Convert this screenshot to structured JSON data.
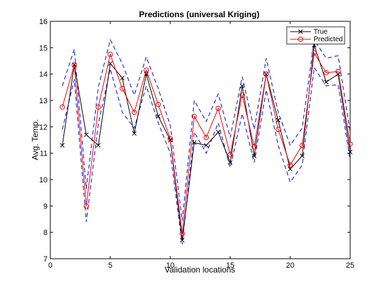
{
  "chart_data": {
    "type": "line",
    "title": "Predictions (universal Kriging)",
    "xlabel": "Validation locations",
    "ylabel": "Avg. Temp.",
    "xlim": [
      0,
      25
    ],
    "ylim": [
      7,
      16
    ],
    "xticks": [
      0,
      5,
      10,
      15,
      20,
      25
    ],
    "yticks": [
      7,
      8,
      9,
      10,
      11,
      12,
      13,
      14,
      15,
      16
    ],
    "grid": false,
    "legend_position": "top-right",
    "x": [
      1,
      2,
      3,
      4,
      5,
      6,
      7,
      8,
      9,
      10,
      11,
      12,
      13,
      14,
      15,
      16,
      17,
      18,
      19,
      20,
      21,
      22,
      23,
      24,
      25
    ],
    "series": [
      {
        "name": "True",
        "color": "#000000",
        "marker": "x",
        "values": [
          11.3,
          14.35,
          11.7,
          11.3,
          14.4,
          13.85,
          11.75,
          14.0,
          12.4,
          11.5,
          7.7,
          11.4,
          11.3,
          11.8,
          10.65,
          13.55,
          10.9,
          14.0,
          12.25,
          10.4,
          10.9,
          15.1,
          13.7,
          14.0,
          11.05
        ]
      },
      {
        "name": "Predicted",
        "color": "#ff0000",
        "marker": "o",
        "values": [
          12.75,
          14.35,
          9.0,
          12.75,
          14.75,
          13.45,
          12.55,
          14.15,
          12.85,
          11.55,
          7.95,
          12.4,
          11.6,
          12.7,
          10.95,
          13.2,
          11.25,
          14.0,
          11.9,
          10.55,
          11.3,
          14.8,
          14.05,
          14.1,
          11.35
        ]
      }
    ],
    "bands": [
      {
        "color": "#0000ff",
        "style": "dashed",
        "upper": [
          13.55,
          14.95,
          9.65,
          13.5,
          15.3,
          14.4,
          13.2,
          14.65,
          13.45,
          12.05,
          8.45,
          13.0,
          12.2,
          13.25,
          11.6,
          13.9,
          11.9,
          14.6,
          12.55,
          11.3,
          11.95,
          15.3,
          14.6,
          14.7,
          11.8
        ],
        "lower": [
          11.9,
          13.8,
          8.4,
          12.1,
          14.2,
          12.55,
          11.95,
          13.55,
          12.15,
          11.0,
          7.55,
          11.8,
          11.0,
          12.15,
          10.45,
          12.5,
          10.65,
          13.4,
          11.3,
          9.9,
          10.55,
          14.25,
          13.55,
          13.6,
          10.75
        ]
      }
    ]
  }
}
